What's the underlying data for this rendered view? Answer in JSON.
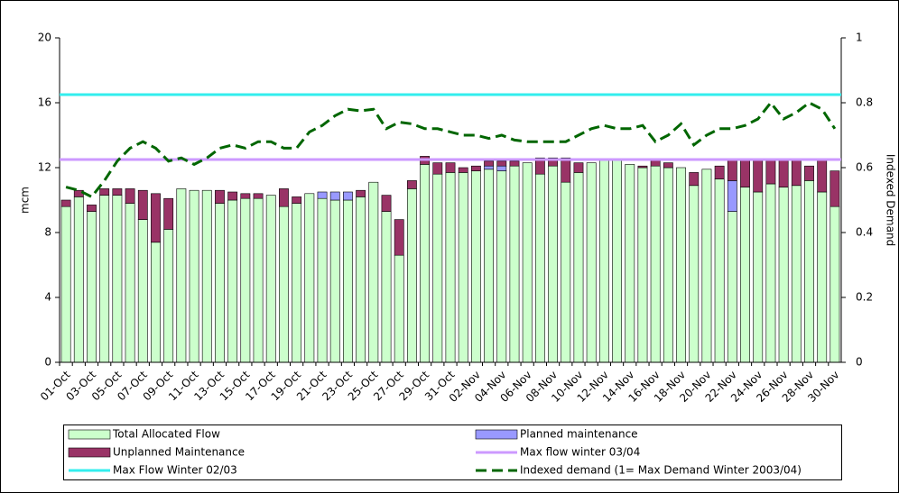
{
  "chart_data": {
    "type": "bar",
    "stacked": true,
    "y_axis_label": "mcm",
    "y2_axis_label": "Indexed Demand",
    "ylim": [
      0,
      20
    ],
    "yticks": [
      0,
      4,
      8,
      12,
      16,
      20
    ],
    "y2lim": [
      0,
      1
    ],
    "y2ticks": [
      0,
      0.2,
      0.4,
      0.6,
      0.8,
      1
    ],
    "categories": [
      "01-Oct",
      null,
      "03-Oct",
      null,
      "05-Oct",
      null,
      "07-Oct",
      null,
      "09-Oct",
      null,
      "11-Oct",
      null,
      "13-Oct",
      null,
      "15-Oct",
      null,
      "17-Oct",
      null,
      "19-Oct",
      null,
      "21-Oct",
      null,
      "23-Oct",
      null,
      "25-Oct",
      null,
      "27-Oct",
      null,
      "29-Oct",
      null,
      "31-Oct",
      null,
      "02-Nov",
      null,
      "04-Nov",
      null,
      "06-Nov",
      null,
      "08-Nov",
      null,
      "10-Nov",
      null,
      "12-Nov",
      null,
      "14-Nov",
      null,
      "16-Nov",
      null,
      "18-Nov",
      null,
      "20-Nov",
      null,
      "22-Nov",
      null,
      "24-Nov",
      null,
      "26-Nov",
      null,
      "28-Nov",
      null,
      "30-Nov"
    ],
    "series": [
      {
        "name": "Total Allocated Flow",
        "color": "#ccffcc",
        "values": [
          9.6,
          10.2,
          9.3,
          10.3,
          10.3,
          9.8,
          8.8,
          7.4,
          8.2,
          10.7,
          10.6,
          10.6,
          9.8,
          10.0,
          10.1,
          10.1,
          10.3,
          9.6,
          9.8,
          10.4,
          10.1,
          10.0,
          10.0,
          10.2,
          11.1,
          9.3,
          6.6,
          10.7,
          12.2,
          11.6,
          11.7,
          11.7,
          11.8,
          11.9,
          11.8,
          12.1,
          12.3,
          11.6,
          12.1,
          11.1,
          11.7,
          12.3,
          12.5,
          12.5,
          12.2,
          12.0,
          12.1,
          12.0,
          12.0,
          10.9,
          11.9,
          11.3,
          9.3,
          10.8,
          10.5,
          11.0,
          10.8,
          10.9,
          11.2,
          10.5,
          9.6
        ]
      },
      {
        "name": "Planned maintenance",
        "color": "#9999ff",
        "values": [
          0,
          0,
          0,
          0,
          0,
          0,
          0,
          0,
          0,
          0,
          0,
          0,
          0,
          0,
          0,
          0,
          0,
          0,
          0,
          0,
          0.4,
          0.5,
          0.5,
          0,
          0,
          0,
          0,
          0,
          0,
          0,
          0,
          0,
          0,
          0.2,
          0.3,
          0,
          0,
          0,
          0,
          0,
          0,
          0,
          0,
          0,
          0,
          0,
          0,
          0,
          0,
          0,
          0,
          0,
          1.9,
          0,
          0,
          0,
          0,
          0,
          0,
          0,
          0
        ]
      },
      {
        "name": "Unplanned Maintenance",
        "color": "#993366",
        "values": [
          0.4,
          0.4,
          0.4,
          0.4,
          0.4,
          0.9,
          1.8,
          3.0,
          1.9,
          0,
          0,
          0,
          0.8,
          0.5,
          0.3,
          0.3,
          0,
          1.1,
          0.4,
          0,
          0,
          0,
          0,
          0.4,
          0,
          1.0,
          2.2,
          0.5,
          0.5,
          0.7,
          0.6,
          0.3,
          0.3,
          0.3,
          0.3,
          0.3,
          0,
          1.0,
          0.5,
          1.5,
          0.6,
          0,
          0,
          0,
          0,
          0.1,
          0.4,
          0.3,
          0,
          0.8,
          0,
          0.8,
          1.3,
          1.7,
          2.0,
          1.5,
          1.7,
          1.6,
          0.9,
          2.0,
          2.2
        ]
      },
      {
        "name": "Indexed demand (1= Max Demand Winter 2003/04)",
        "color": "#006600",
        "type": "line",
        "dashed": true,
        "axis": "y2",
        "values": [
          0.54,
          0.53,
          0.51,
          0.56,
          0.62,
          0.66,
          0.68,
          0.66,
          0.62,
          0.63,
          0.61,
          0.63,
          0.66,
          0.67,
          0.66,
          0.68,
          0.68,
          0.66,
          0.66,
          0.71,
          0.73,
          0.76,
          0.78,
          0.775,
          0.78,
          0.72,
          0.74,
          0.735,
          0.72,
          0.72,
          0.71,
          0.7,
          0.7,
          0.69,
          0.7,
          0.685,
          0.68,
          0.68,
          0.68,
          0.68,
          0.7,
          0.72,
          0.73,
          0.72,
          0.72,
          0.73,
          0.68,
          0.7,
          0.735,
          0.67,
          0.7,
          0.72,
          0.72,
          0.73,
          0.75,
          0.8,
          0.75,
          0.77,
          0.8,
          0.78,
          0.72
        ]
      }
    ],
    "hlines": [
      {
        "name": "Max flow winter 03/04",
        "color": "#cc99ff",
        "value": 12.5
      },
      {
        "name": "Max Flow Winter 02/03",
        "color": "#33eeee",
        "value": 16.5
      }
    ]
  }
}
